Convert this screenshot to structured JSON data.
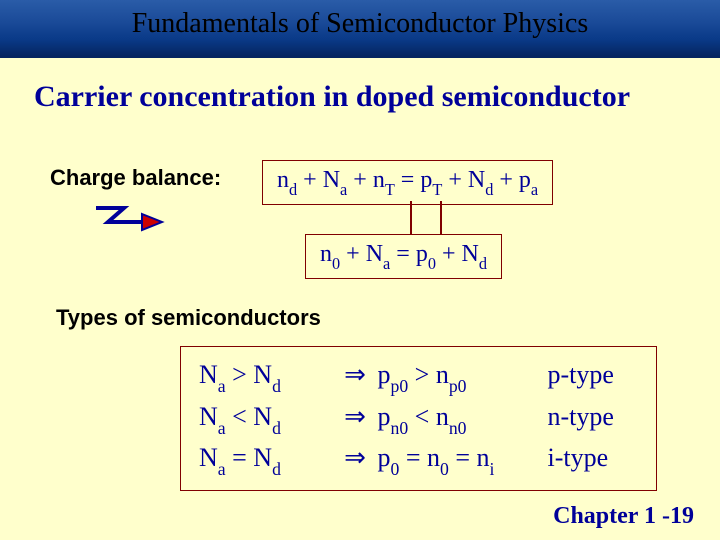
{
  "title": "Fundamentals of Semiconductor Physics",
  "heading": "Carrier concentration  in doped semiconductor",
  "charge_balance_label": "Charge balance:",
  "types_label": "Types of semiconductors",
  "chapter": "Chapter 1 -19",
  "colors": {
    "background": "#ffffcc",
    "heading": "#000099",
    "box_border": "#800000",
    "title_gradient_top": "#2a5ca8",
    "title_gradient_bottom": "#052560"
  },
  "equation1": {
    "terms": [
      "n",
      "d",
      " + N",
      "a",
      " + n",
      "T",
      " =  p",
      "T",
      " + N",
      "d",
      " + p",
      "a"
    ]
  },
  "equation2": {
    "terms": [
      "n",
      "0",
      " + N",
      "a",
      " =  p",
      "0",
      " + N",
      "d"
    ]
  },
  "semiconductor_types": [
    {
      "cond_lhs": "N",
      "cond_lsub": "a",
      "cond_op": ">",
      "cond_rhs": "N",
      "cond_rsub": "d",
      "res_lhs": "p",
      "res_lsub": "p0",
      "res_op": ">",
      "res_rhs": "n",
      "res_rsub": "p0",
      "label": "p-type"
    },
    {
      "cond_lhs": "N",
      "cond_lsub": "a",
      "cond_op": "<",
      "cond_rhs": "N",
      "cond_rsub": "d",
      "res_lhs": "p",
      "res_lsub": "n0",
      "res_op": "<",
      "res_rhs": "n",
      "res_rsub": "n0",
      "label": "n-type"
    },
    {
      "cond_lhs": "N",
      "cond_lsub": "a",
      "cond_op": "=",
      "cond_rhs": "N",
      "cond_rsub": "d",
      "res_lhs": "p",
      "res_lsub": "0",
      "res_op": "= n<sub>0</sub> =",
      "res_rhs": "n",
      "res_rsub": "i",
      "label": "i-type"
    }
  ],
  "arrow": {
    "stroke": "#000099",
    "fill": "#cc0000"
  }
}
